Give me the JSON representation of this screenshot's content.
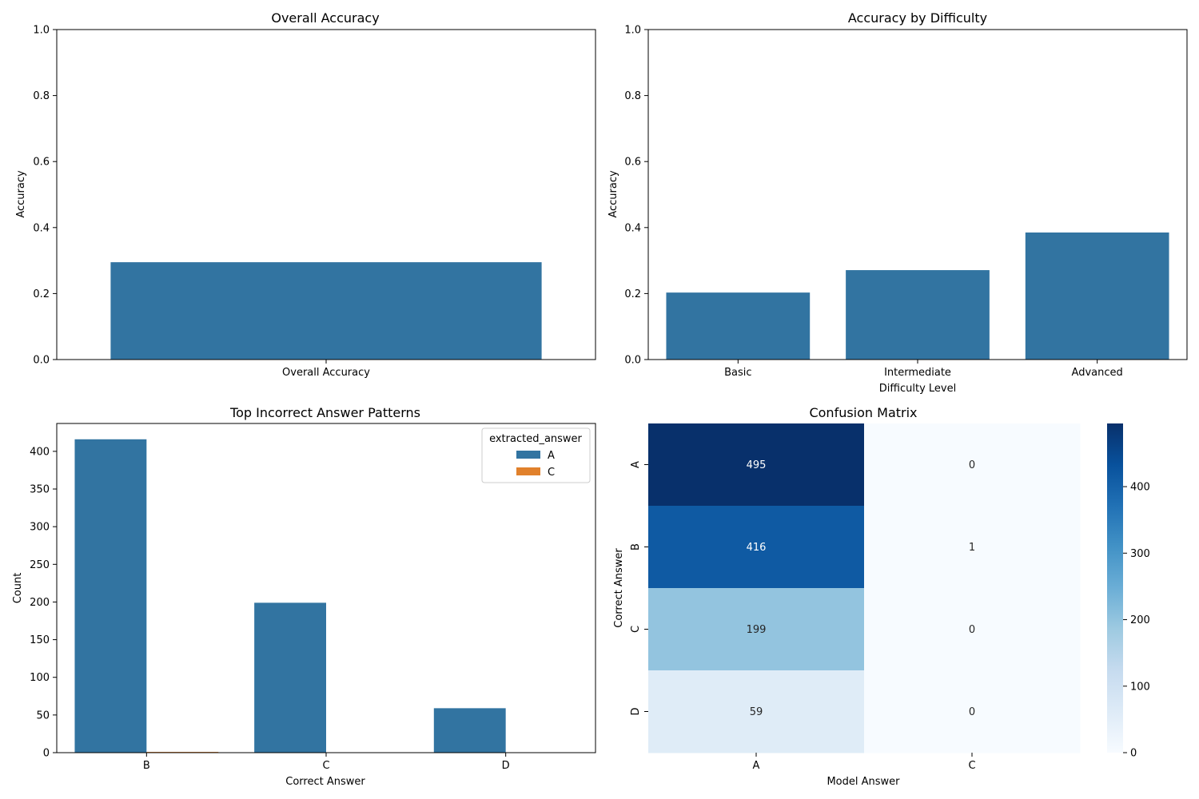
{
  "chart_data": [
    {
      "type": "bar",
      "title": "Overall Accuracy",
      "xlabel": "",
      "ylabel": "Accuracy",
      "categories": [
        "Overall Accuracy"
      ],
      "values": [
        0.295
      ],
      "ylim": [
        0,
        1.0
      ],
      "yticks": [
        "0.0",
        "0.2",
        "0.4",
        "0.6",
        "0.8",
        "1.0"
      ],
      "grid": false,
      "color": "#3274a1"
    },
    {
      "type": "bar",
      "title": "Accuracy by Difficulty",
      "xlabel": "Difficulty Level",
      "ylabel": "Accuracy",
      "categories": [
        "Basic",
        "Intermediate",
        "Advanced"
      ],
      "values": [
        0.203,
        0.271,
        0.385
      ],
      "ylim": [
        0,
        1.0
      ],
      "yticks": [
        "0.0",
        "0.2",
        "0.4",
        "0.6",
        "0.8",
        "1.0"
      ],
      "grid": false,
      "color": "#3274a1"
    },
    {
      "type": "bar",
      "title": "Top Incorrect Answer Patterns",
      "xlabel": "Correct Answer",
      "ylabel": "Count",
      "categories": [
        "B",
        "C",
        "D"
      ],
      "series": [
        {
          "name": "A",
          "values": [
            416,
            199,
            59
          ],
          "color": "#3274a1"
        },
        {
          "name": "C",
          "values": [
            1,
            0,
            0
          ],
          "color": "#e1812c"
        }
      ],
      "legend": {
        "title": "extracted_answer",
        "placement": "top-right"
      },
      "ylim": [
        0,
        437
      ],
      "yticks": [
        "0",
        "50",
        "100",
        "150",
        "200",
        "250",
        "300",
        "350",
        "400"
      ],
      "grid": false
    },
    {
      "type": "heatmap",
      "title": "Confusion Matrix",
      "xlabel": "Model Answer",
      "ylabel": "Correct Answer",
      "x_categories": [
        "A",
        "C"
      ],
      "y_categories": [
        "A",
        "B",
        "C",
        "D"
      ],
      "values": [
        [
          495,
          0
        ],
        [
          416,
          1
        ],
        [
          199,
          0
        ],
        [
          59,
          0
        ]
      ],
      "colormap": "Blues",
      "colorbar": {
        "min": 0,
        "max": 495,
        "ticks": [
          "0",
          "100",
          "200",
          "300",
          "400"
        ]
      }
    }
  ]
}
